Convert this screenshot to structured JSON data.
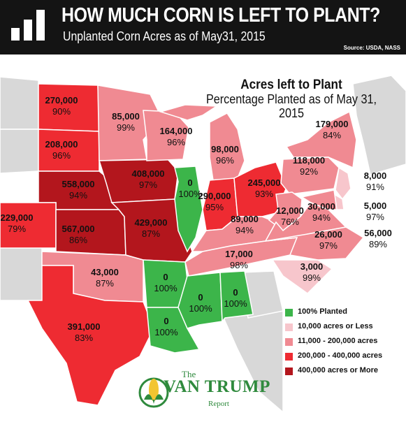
{
  "header": {
    "title": "HOW MUCH CORN IS LEFT TO PLANT?",
    "subtitle": "Unplanted Corn Acres as of May31, 2015",
    "source": "Source: USDA, NASS"
  },
  "map_heading": {
    "line1": "Acres left to Plant",
    "line2": "Percentage Planted as of May 31, 2015"
  },
  "colors": {
    "planted_100": "#3cb54a",
    "under_10k": "#f7c6cc",
    "k11_200k": "#f08a92",
    "k200_400k": "#ee2b32",
    "over_400k": "#b3161d",
    "no_data": "#d8d8d8",
    "water": "#ffffff",
    "border": "#ffffff"
  },
  "states": [
    {
      "id": "ND",
      "acres": "270,000",
      "pct": "90%",
      "category": "k200_400k"
    },
    {
      "id": "SD",
      "acres": "208,000",
      "pct": "96%",
      "category": "k200_400k"
    },
    {
      "id": "NE",
      "acres": "558,000",
      "pct": "94%",
      "category": "over_400k"
    },
    {
      "id": "CO",
      "acres": "229,000",
      "pct": "79%",
      "category": "k200_400k"
    },
    {
      "id": "KS",
      "acres": "567,000",
      "pct": "86%",
      "category": "over_400k"
    },
    {
      "id": "OK",
      "acres": "43,000",
      "pct": "87%",
      "category": "k11_200k"
    },
    {
      "id": "TX",
      "acres": "391,000",
      "pct": "83%",
      "category": "k200_400k"
    },
    {
      "id": "MN",
      "acres": "85,000",
      "pct": "99%",
      "category": "k11_200k"
    },
    {
      "id": "IA",
      "acres": "408,000",
      "pct": "97%",
      "category": "over_400k"
    },
    {
      "id": "MO",
      "acres": "429,000",
      "pct": "87%",
      "category": "over_400k"
    },
    {
      "id": "AR",
      "acres": "0",
      "pct": "100%",
      "category": "planted_100"
    },
    {
      "id": "LA",
      "acres": "0",
      "pct": "100%",
      "category": "planted_100"
    },
    {
      "id": "WI",
      "acres": "164,000",
      "pct": "96%",
      "category": "k11_200k"
    },
    {
      "id": "IL",
      "acres": "0",
      "pct": "100%",
      "category": "planted_100"
    },
    {
      "id": "MI",
      "acres": "98,000",
      "pct": "96%",
      "category": "k11_200k"
    },
    {
      "id": "IN",
      "acres": "290,000",
      "pct": "95%",
      "category": "k200_400k"
    },
    {
      "id": "OH",
      "acres": "245,000",
      "pct": "93%",
      "category": "k200_400k"
    },
    {
      "id": "KY",
      "acres": "89,000",
      "pct": "94%",
      "category": "k11_200k"
    },
    {
      "id": "TN",
      "acres": "17,000",
      "pct": "98%",
      "category": "k11_200k"
    },
    {
      "id": "MS",
      "acres": "0",
      "pct": "100%",
      "category": "planted_100"
    },
    {
      "id": "AL",
      "acres": "0",
      "pct": "100%",
      "category": "planted_100"
    },
    {
      "id": "NY",
      "acres": "179,000",
      "pct": "84%",
      "category": "k11_200k"
    },
    {
      "id": "PA",
      "acres": "118,000",
      "pct": "92%",
      "category": "k11_200k"
    },
    {
      "id": "WV",
      "acres": "12,000",
      "pct": "76%",
      "category": "k11_200k"
    },
    {
      "id": "VA",
      "acres": "30,000",
      "pct": "94%",
      "category": "k11_200k"
    },
    {
      "id": "NC",
      "acres": "26,000",
      "pct": "97%",
      "category": "k11_200k"
    },
    {
      "id": "SC",
      "acres": "3,000",
      "pct": "99%",
      "category": "under_10k"
    },
    {
      "id": "NJ",
      "acres": "8,000",
      "pct": "91%",
      "category": "under_10k"
    },
    {
      "id": "DE",
      "acres": "5,000",
      "pct": "97%",
      "category": "under_10k"
    },
    {
      "id": "MD",
      "acres": "56,000",
      "pct": "89%",
      "category": "k11_200k"
    }
  ],
  "legend": [
    {
      "label": "100% Planted",
      "category": "planted_100"
    },
    {
      "label": "10,000 acres or Less",
      "category": "under_10k"
    },
    {
      "label": "11,000 - 200,000 acres",
      "category": "k11_200k"
    },
    {
      "label": "200,000 - 400,000 acres",
      "category": "k200_400k"
    },
    {
      "label": "400,000 acres or More",
      "category": "over_400k"
    }
  ],
  "brand": {
    "the": "The",
    "name": "VAN TRUMP",
    "report": "Report"
  }
}
